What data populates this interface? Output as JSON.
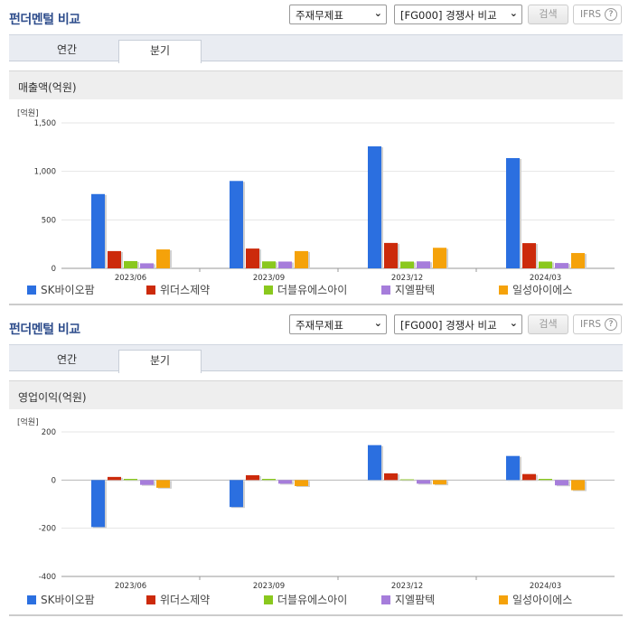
{
  "panels": [
    {
      "title": "펀더멘털 비교",
      "select1": "주재무제표",
      "select2": "[FG000] 경쟁사 비교",
      "search_label": "검색",
      "ifrs_label": "IFRS",
      "ifrs_help": "?",
      "tabs": [
        {
          "label": "연간"
        },
        {
          "label": "분기"
        }
      ],
      "active_tab": "분기",
      "section_label": "매출액(억원)",
      "unit_label": "[억원]"
    },
    {
      "title": "펀더멘털 비교",
      "select1": "주재무제표",
      "select2": "[FG000] 경쟁사 비교",
      "search_label": "검색",
      "ifrs_label": "IFRS",
      "ifrs_help": "?",
      "tabs": [
        {
          "label": "연간"
        },
        {
          "label": "분기"
        }
      ],
      "active_tab": "분기",
      "section_label": "영업이익(억원)",
      "unit_label": "[억원]"
    }
  ],
  "colors": {
    "SK바이오팜": "#2b6fe0",
    "위더스제약": "#cc2a0b",
    "더블유에스아이": "#8ac81e",
    "지엘팜텍": "#a67ddb",
    "일성아이에스": "#f5a20a"
  },
  "chart_data": [
    {
      "type": "bar",
      "title": "매출액(억원)",
      "ylabel": "[억원]",
      "categories": [
        "2023/06",
        "2023/09",
        "2023/12",
        "2024/03"
      ],
      "ylim": [
        0,
        1500
      ],
      "yticks": [
        0,
        500,
        1000,
        1500
      ],
      "ytick_labels": [
        "0",
        "500",
        "1,000",
        "1,500"
      ],
      "grid": true,
      "legend": "bottom",
      "series": [
        {
          "name": "SK바이오팜",
          "values": [
            766,
            901,
            1258,
            1137
          ]
        },
        {
          "name": "위더스제약",
          "values": [
            178,
            204,
            262,
            260
          ]
        },
        {
          "name": "더블유에스아이",
          "values": [
            75,
            72,
            70,
            70
          ]
        },
        {
          "name": "지엘팜텍",
          "values": [
            52,
            70,
            72,
            55
          ]
        },
        {
          "name": "일성아이에스",
          "values": [
            195,
            178,
            212,
            158
          ]
        }
      ]
    },
    {
      "type": "bar",
      "title": "영업이익(억원)",
      "ylabel": "[억원]",
      "categories": [
        "2023/06",
        "2023/09",
        "2023/12",
        "2024/03"
      ],
      "ylim": [
        -400,
        200
      ],
      "yticks": [
        -400,
        -200,
        0,
        200
      ],
      "ytick_labels": [
        "-400",
        "-200",
        "0",
        "200"
      ],
      "grid": true,
      "legend": "bottom",
      "series": [
        {
          "name": "SK바이오팜",
          "values": [
            -195,
            -112,
            145,
            100
          ]
        },
        {
          "name": "위더스제약",
          "values": [
            13,
            20,
            28,
            25
          ]
        },
        {
          "name": "더블유에스아이",
          "values": [
            5,
            5,
            3,
            5
          ]
        },
        {
          "name": "지엘팜텍",
          "values": [
            -20,
            -15,
            -15,
            -22
          ]
        },
        {
          "name": "일성아이에스",
          "values": [
            -32,
            -25,
            -18,
            -42
          ]
        }
      ]
    }
  ]
}
